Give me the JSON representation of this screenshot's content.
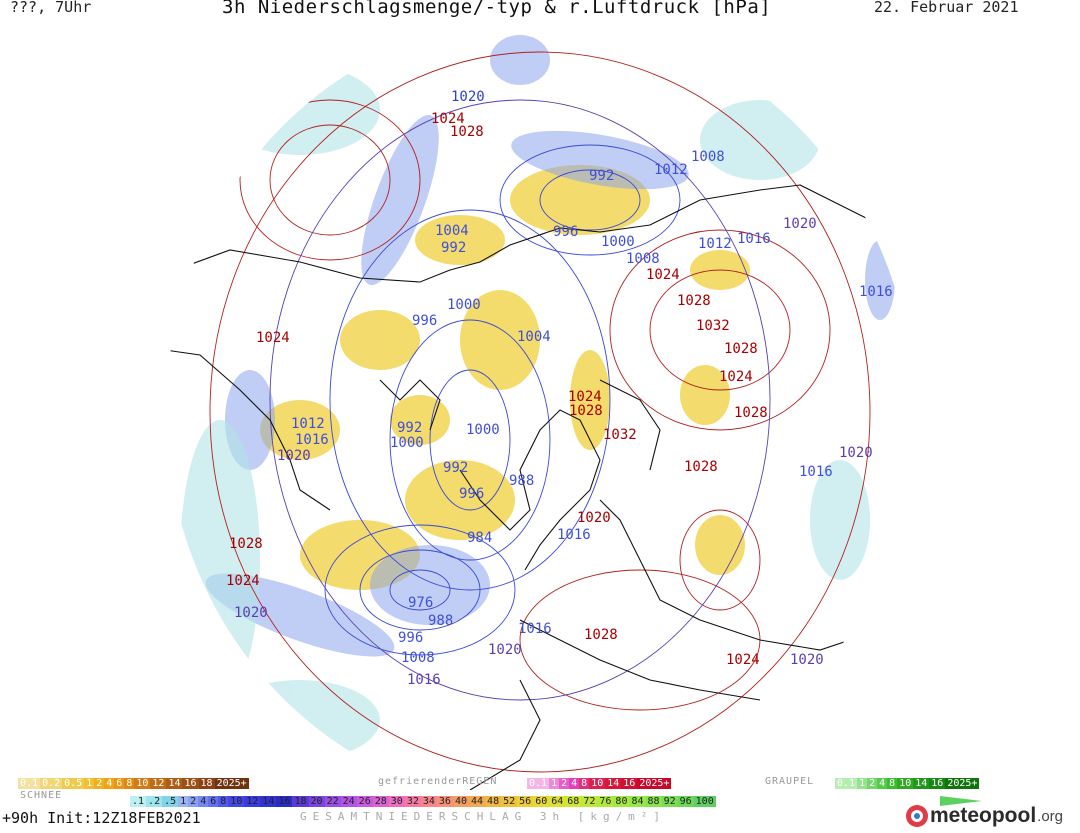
{
  "header": {
    "left_label": "???, 7Uhr",
    "title": "3h Niederschlagsmenge/-typ & r.Luftdruck [hPa]",
    "date": "22. Februar 2021"
  },
  "isobar_labels": [
    {
      "text": "1020",
      "color": "#2b3fd6"
    },
    {
      "text": "1024",
      "color": "#a80000"
    },
    {
      "text": "1028",
      "color": "#a80000"
    },
    {
      "text": "992",
      "color": "#3f4fd8"
    },
    {
      "text": "1012",
      "color": "#3f4fd8"
    },
    {
      "text": "1008",
      "color": "#3f4fd8"
    },
    {
      "text": "1004",
      "color": "#3f4fd8"
    },
    {
      "text": "996",
      "color": "#3f4fd8"
    },
    {
      "text": "1000",
      "color": "#3f4fd8"
    },
    {
      "text": "1008",
      "color": "#3f4fd8"
    },
    {
      "text": "1024",
      "color": "#a80000"
    },
    {
      "text": "1012",
      "color": "#3f4fd8"
    },
    {
      "text": "1016",
      "color": "#3f4fd8"
    },
    {
      "text": "1020",
      "color": "#5a3fb0"
    },
    {
      "text": "992",
      "color": "#3f4fd8"
    },
    {
      "text": "1000",
      "color": "#3f4fd8"
    },
    {
      "text": "1004",
      "color": "#3f4fd8"
    },
    {
      "text": "1024",
      "color": "#a80000"
    },
    {
      "text": "1028",
      "color": "#a80000"
    },
    {
      "text": "1016",
      "color": "#3f4fd8"
    },
    {
      "text": "1032",
      "color": "#a80000"
    },
    {
      "text": "996",
      "color": "#3f4fd8"
    },
    {
      "text": "1028",
      "color": "#a80000"
    },
    {
      "text": "1024",
      "color": "#a80000"
    },
    {
      "text": "1028",
      "color": "#a80000"
    },
    {
      "text": "1024",
      "color": "#a80000"
    },
    {
      "text": "1028",
      "color": "#a80000"
    },
    {
      "text": "1032",
      "color": "#a80000"
    },
    {
      "text": "1012",
      "color": "#3f4fd8"
    },
    {
      "text": "992",
      "color": "#3f4fd8"
    },
    {
      "text": "1000",
      "color": "#3f4fd8"
    },
    {
      "text": "1016",
      "color": "#3f4fd8"
    },
    {
      "text": "1000",
      "color": "#3f4fd8"
    },
    {
      "text": "1020",
      "color": "#5a3fb0"
    },
    {
      "text": "992",
      "color": "#3f4fd8"
    },
    {
      "text": "1028",
      "color": "#a80000"
    },
    {
      "text": "1020",
      "color": "#5a3fb0"
    },
    {
      "text": "1016",
      "color": "#3f4fd8"
    },
    {
      "text": "996",
      "color": "#3f4fd8"
    },
    {
      "text": "988",
      "color": "#3f4fd8"
    },
    {
      "text": "1020",
      "color": "#a80000"
    },
    {
      "text": "1016",
      "color": "#3f4fd8"
    },
    {
      "text": "984",
      "color": "#3f4fd8"
    },
    {
      "text": "1028",
      "color": "#a80000"
    },
    {
      "text": "1024",
      "color": "#a80000"
    },
    {
      "text": "976",
      "color": "#3f4fd8"
    },
    {
      "text": "988",
      "color": "#3f4fd8"
    },
    {
      "text": "1020",
      "color": "#5a3fb0"
    },
    {
      "text": "996",
      "color": "#3f4fd8"
    },
    {
      "text": "1016",
      "color": "#3f4fd8"
    },
    {
      "text": "1028",
      "color": "#a80000"
    },
    {
      "text": "1008",
      "color": "#3f4fd8"
    },
    {
      "text": "1020",
      "color": "#5a3fb0"
    },
    {
      "text": "1024",
      "color": "#a80000"
    },
    {
      "text": "1020",
      "color": "#5a3fb0"
    },
    {
      "text": "1016",
      "color": "#5a3fb0"
    }
  ],
  "legend": {
    "snow": {
      "label": "SCHNEE",
      "values": [
        "0.1",
        "0.2",
        "0.5",
        "1",
        "2",
        "4",
        "6",
        "8",
        "10",
        "12",
        "14",
        "16",
        "18",
        "2025+"
      ],
      "colors": [
        "#f3e2a0",
        "#f1d776",
        "#eecb4c",
        "#f0c030",
        "#f0b020",
        "#eea416",
        "#ea9614",
        "#e08814",
        "#d27a14",
        "#c06c14",
        "#ae5e14",
        "#9c5014",
        "#8a4214",
        "#6e3410"
      ]
    },
    "freezing_rain": {
      "label": "gefrierenderREGEN",
      "values": [
        "0.1",
        "1",
        "2",
        "4",
        "8",
        "10",
        "14",
        "16",
        "2025+"
      ],
      "colors": [
        "#f4b6e6",
        "#ee8ad8",
        "#e85ec8",
        "#e040b8",
        "#e0307a",
        "#dc2050",
        "#d61838",
        "#d01030",
        "#c80828"
      ]
    },
    "graupel": {
      "label": "GRAUPEL",
      "values": [
        "0.1",
        "1",
        "2",
        "4",
        "8",
        "10",
        "14",
        "16",
        "2025+"
      ],
      "colors": [
        "#b6eeb0",
        "#96e28e",
        "#76d66c",
        "#56ca4a",
        "#3abd2e",
        "#2eab22",
        "#22981a",
        "#188612",
        "#10740c"
      ]
    },
    "total": {
      "label": "GESAMTNIEDERSCHLAG 3h [kg/m²]",
      "values": [
        ".1",
        ".2",
        ".5",
        "1",
        "2",
        "4",
        "6",
        "8",
        "10",
        "12",
        "14",
        "16",
        "18",
        "20",
        "22",
        "24",
        "26",
        "28",
        "30",
        "32",
        "34",
        "36",
        "40",
        "44",
        "48",
        "52",
        "56",
        "60",
        "64",
        "68",
        "72",
        "76",
        "80",
        "84",
        "88",
        "92",
        "96",
        "100"
      ],
      "colors": [
        "#bdf0f0",
        "#9ee4ec",
        "#80d4e6",
        "#9cb4f2",
        "#8aa0f2",
        "#7688f0",
        "#6470ee",
        "#5258ea",
        "#4446e6",
        "#3a3ade",
        "#3232d2",
        "#2a2ac4",
        "#5a3ad6",
        "#7a44de",
        "#9a4ee4",
        "#b454e6",
        "#c85ae0",
        "#dc64d2",
        "#ee6ec0",
        "#f47aa6",
        "#f6868e",
        "#f69278",
        "#f49e64",
        "#f2aa52",
        "#f0b646",
        "#eec23c",
        "#ecce36",
        "#e8da32",
        "#dce232",
        "#cee634",
        "#c0e838",
        "#b2ea3c",
        "#a4ea42",
        "#96e848",
        "#88e44e",
        "#7ade54",
        "#6cd85a",
        "#5ed060"
      ]
    }
  },
  "footer": {
    "run_info": "+90h Init:12Z18FEB2021",
    "logo_text": "meteopool",
    "logo_suffix": ".org"
  }
}
